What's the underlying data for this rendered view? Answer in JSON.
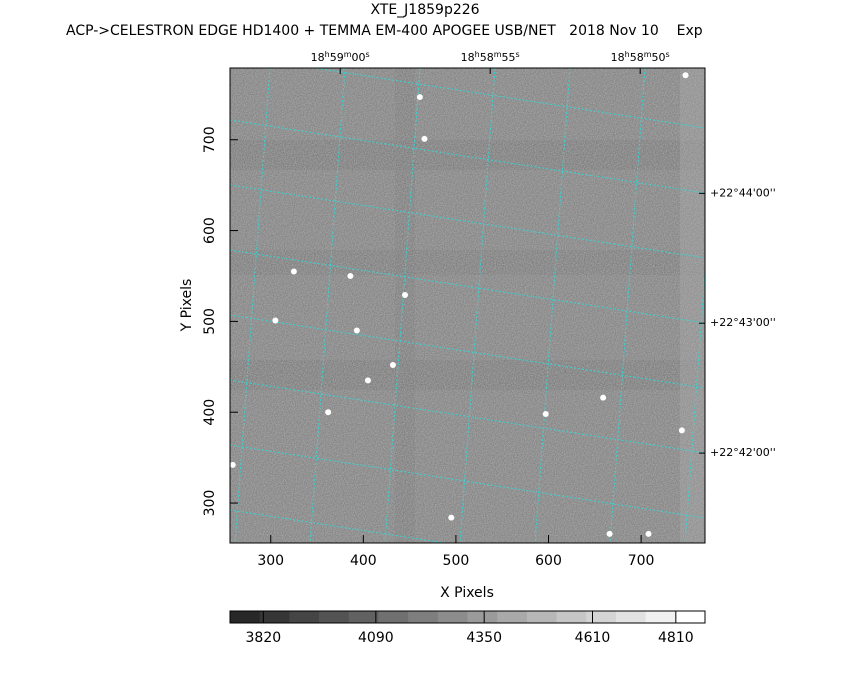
{
  "chart_data": {
    "type": "image",
    "title": "XTE_J1859p226",
    "subtitle": "ACP->CELESTRON EDGE HD1400 + TEMMA EM-400 APOGEE USB/NET   2018 Nov 10    Exp",
    "x_label": "X Pixels",
    "y_label": "Y Pixels",
    "xlim": [
      256,
      769
    ],
    "ylim": [
      256,
      779
    ],
    "xticks": [
      300,
      400,
      500,
      600,
      700
    ],
    "yticks": [
      300,
      400,
      500,
      600,
      700
    ],
    "ra_ticks": [
      {
        "x": 375,
        "parts": [
          "18",
          "h",
          "59",
          "m",
          "00",
          "s"
        ]
      },
      {
        "x": 537,
        "parts": [
          "18",
          "h",
          "58",
          "m",
          "55",
          "s"
        ]
      },
      {
        "x": 699,
        "parts": [
          "18",
          "h",
          "58",
          "m",
          "50",
          "s"
        ]
      }
    ],
    "dec_ticks": [
      {
        "y": 641,
        "label": "+22°44'00''"
      },
      {
        "y": 498,
        "label": "+22°43'00''"
      },
      {
        "y": 355,
        "label": "+22°42'00''"
      }
    ],
    "sources": {
      "x": [
        445,
        393,
        461,
        466,
        325,
        386,
        405,
        362,
        597,
        659,
        744,
        748,
        495,
        259,
        708,
        666,
        432,
        305
      ],
      "y": [
        529,
        490,
        747,
        701,
        555,
        550,
        435,
        400,
        398,
        416,
        380,
        771,
        284,
        342,
        266,
        266,
        452,
        501
      ]
    },
    "colorbar": {
      "clim": [
        3740,
        4880
      ],
      "ticks": [
        3820,
        4090,
        4350,
        4610,
        4810
      ]
    }
  }
}
